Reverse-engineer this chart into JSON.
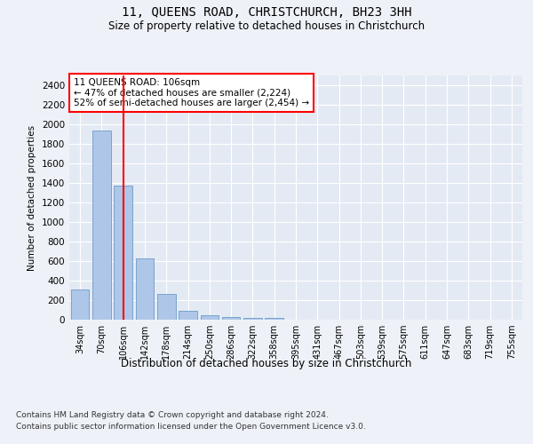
{
  "title": "11, QUEENS ROAD, CHRISTCHURCH, BH23 3HH",
  "subtitle": "Size of property relative to detached houses in Christchurch",
  "xlabel": "Distribution of detached houses by size in Christchurch",
  "ylabel": "Number of detached properties",
  "categories": [
    "34sqm",
    "70sqm",
    "106sqm",
    "142sqm",
    "178sqm",
    "214sqm",
    "250sqm",
    "286sqm",
    "322sqm",
    "358sqm",
    "395sqm",
    "431sqm",
    "467sqm",
    "503sqm",
    "539sqm",
    "575sqm",
    "611sqm",
    "647sqm",
    "683sqm",
    "719sqm",
    "755sqm"
  ],
  "bar_heights": [
    310,
    1940,
    1370,
    625,
    265,
    90,
    45,
    30,
    20,
    15,
    0,
    0,
    0,
    0,
    0,
    0,
    0,
    0,
    0,
    0,
    0
  ],
  "bar_color": "#aec6e8",
  "bar_edge_color": "#5a8fc0",
  "vline_x_index": 2,
  "vline_color": "red",
  "annotation_text": "11 QUEENS ROAD: 106sqm\n← 47% of detached houses are smaller (2,224)\n52% of semi-detached houses are larger (2,454) →",
  "annotation_box_color": "white",
  "annotation_box_edge_color": "red",
  "ylim": [
    0,
    2500
  ],
  "yticks": [
    0,
    200,
    400,
    600,
    800,
    1000,
    1200,
    1400,
    1600,
    1800,
    2000,
    2200,
    2400
  ],
  "footnote1": "Contains HM Land Registry data © Crown copyright and database right 2024.",
  "footnote2": "Contains public sector information licensed under the Open Government Licence v3.0.",
  "bg_color": "#eef2f8",
  "plot_bg_color": "#e4eaf4"
}
